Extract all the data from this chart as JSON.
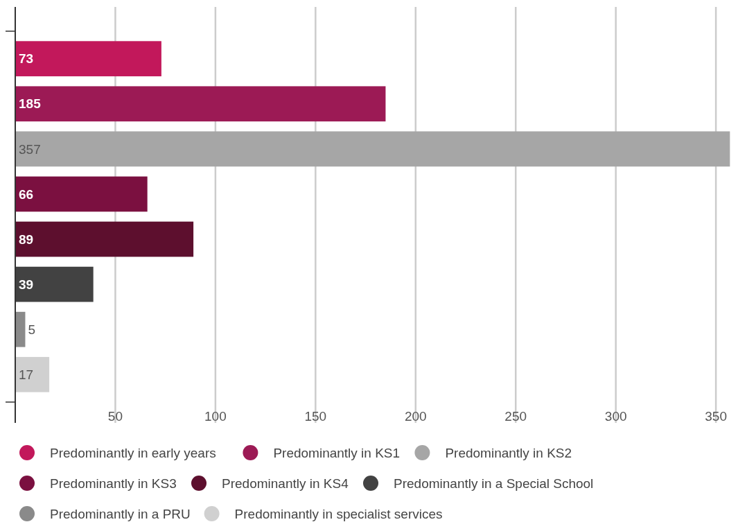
{
  "chart_data": {
    "type": "bar",
    "orientation": "horizontal",
    "categories": [
      null
    ],
    "series": [
      {
        "name": "Predominantly in early years",
        "color": "#c2185b",
        "values": [
          73
        ]
      },
      {
        "name": "Predominantly in KS1",
        "color": "#9c1a55",
        "values": [
          185
        ]
      },
      {
        "name": "Predominantly in KS2",
        "color": "#a6a6a6",
        "values": [
          357
        ]
      },
      {
        "name": "Predominantly in KS3",
        "color": "#7b1040",
        "values": [
          66
        ]
      },
      {
        "name": "Predominantly in KS4",
        "color": "#5d0f2e",
        "values": [
          89
        ]
      },
      {
        "name": "Predominantly in a Special School",
        "color": "#424242",
        "values": [
          39
        ]
      },
      {
        "name": "Predominantly in a PRU",
        "color": "#8a8a8a",
        "values": [
          5
        ]
      },
      {
        "name": "Predominantly in specialist services",
        "color": "#d0d0d0",
        "values": [
          17
        ]
      }
    ],
    "xlim": [
      0,
      360
    ],
    "xticks": [
      50,
      100,
      150,
      200,
      250,
      300,
      350
    ],
    "grid": "x",
    "legend": "bottom",
    "data_labels": true
  }
}
